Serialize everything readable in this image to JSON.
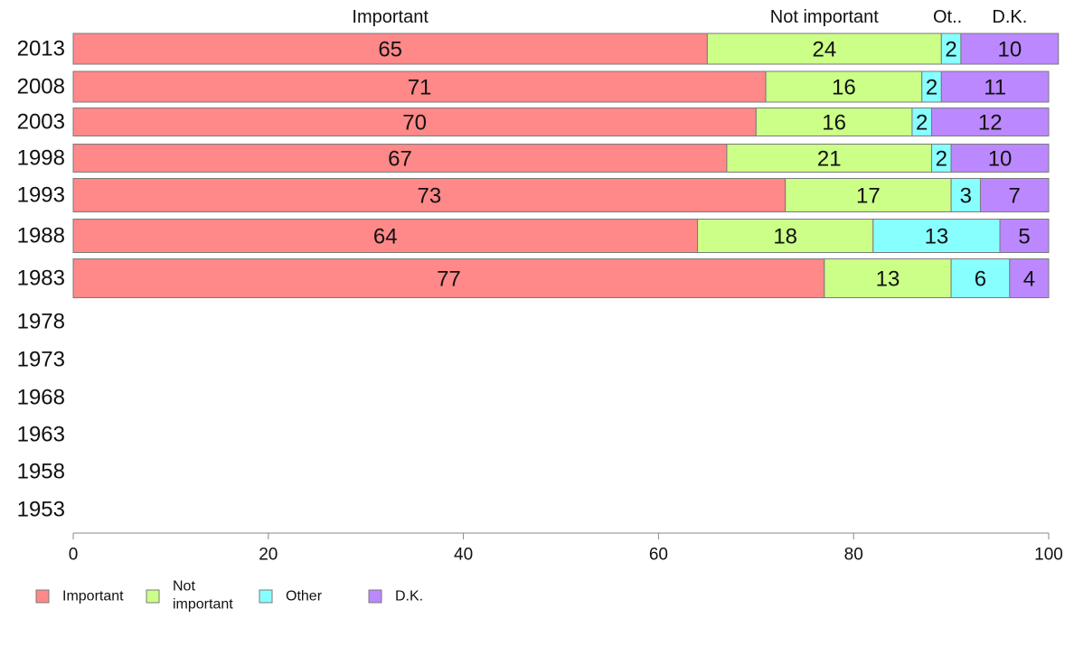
{
  "chart_data": {
    "type": "bar",
    "orientation": "horizontal",
    "stacked": true,
    "categories": [
      "2013",
      "2008",
      "2003",
      "1998",
      "1993",
      "1988",
      "1983",
      "1978",
      "1973",
      "1968",
      "1963",
      "1958",
      "1953"
    ],
    "series": [
      {
        "name": "Important",
        "color": "#ff8888",
        "values": [
          65,
          71,
          70,
          67,
          73,
          64,
          77,
          null,
          null,
          null,
          null,
          null,
          null
        ]
      },
      {
        "name": "Not important",
        "color": "#ccff88",
        "values": [
          24,
          16,
          16,
          21,
          17,
          18,
          13,
          null,
          null,
          null,
          null,
          null,
          null
        ]
      },
      {
        "name": "Other",
        "color": "#88ffff",
        "values": [
          2,
          2,
          2,
          2,
          3,
          13,
          6,
          null,
          null,
          null,
          null,
          null,
          null
        ]
      },
      {
        "name": "D.K.",
        "color": "#bb88ff",
        "values": [
          10,
          11,
          12,
          10,
          7,
          5,
          4,
          null,
          null,
          null,
          null,
          null,
          null
        ]
      }
    ],
    "top_labels": [
      "Important",
      "Not important",
      "Ot..",
      "D.K."
    ],
    "legend": [
      {
        "label": "Important",
        "color": "#ff8888"
      },
      {
        "label": "Not important",
        "color": "#ccff88"
      },
      {
        "label": "Other",
        "color": "#88ffff"
      },
      {
        "label": "D.K.",
        "color": "#bb88ff"
      }
    ],
    "xlim": [
      0,
      100
    ],
    "xticks": [
      0,
      20,
      40,
      60,
      80,
      100
    ],
    "grid": false,
    "legend_position": "bottom-left"
  }
}
